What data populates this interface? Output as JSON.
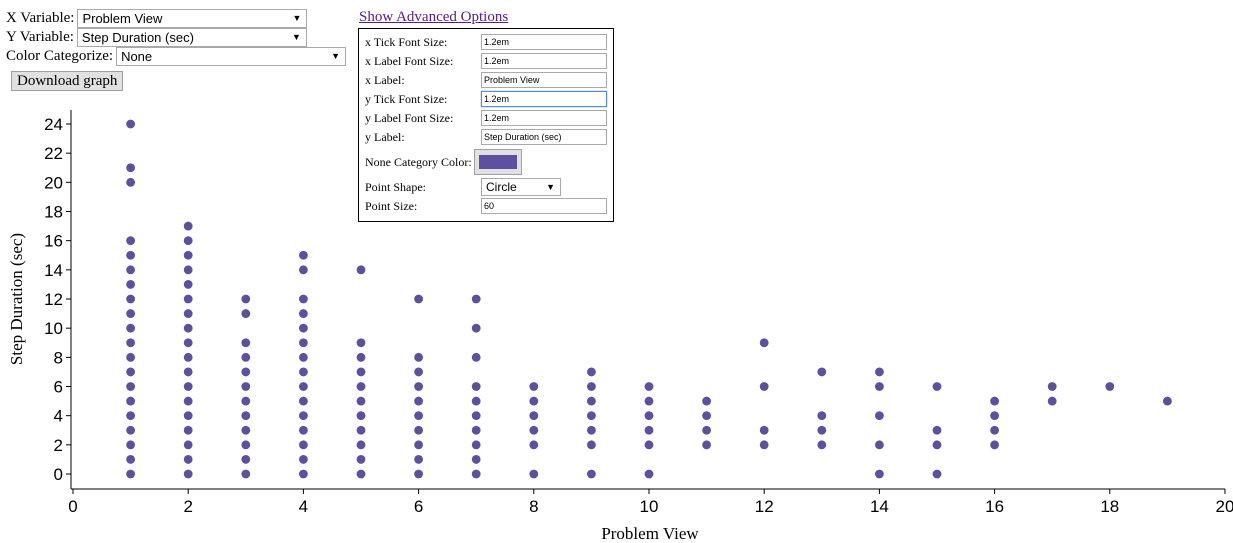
{
  "controls": {
    "x_variable": {
      "label": "X Variable:",
      "value": "Problem View"
    },
    "y_variable": {
      "label": "Y Variable:",
      "value": "Step Duration (sec)"
    },
    "color_categorize": {
      "label": "Color Categorize:",
      "value": "None"
    },
    "download_label": "Download graph"
  },
  "advanced": {
    "link_text": "Show Advanced Options",
    "x_tick_font_size": {
      "label": "x Tick Font Size:",
      "value": "1.2em"
    },
    "x_label_font_size": {
      "label": "x Label Font Size:",
      "value": "1.2em"
    },
    "x_label": {
      "label": "x Label:",
      "value": "Problem View"
    },
    "y_tick_font_size": {
      "label": "y Tick Font Size:",
      "value": "1.2em"
    },
    "y_label_font_size": {
      "label": "y Label Font Size:",
      "value": "1.2em"
    },
    "y_label": {
      "label": "y Label:",
      "value": "Step Duration (sec)"
    },
    "none_category_color": {
      "label": "None Category Color:",
      "value": "#5e4fa2"
    },
    "point_shape": {
      "label": "Point Shape:",
      "value": "Circle"
    },
    "point_size": {
      "label": "Point Size:",
      "value": "60"
    }
  },
  "chart_data": {
    "type": "scatter",
    "xlabel": "Problem View",
    "ylabel": "Step Duration (sec)",
    "xlim": [
      0,
      20
    ],
    "ylim": [
      0,
      24
    ],
    "xticks": [
      "0",
      "2",
      "4",
      "6",
      "8",
      "10",
      "12",
      "14",
      "16",
      "18",
      "20"
    ],
    "yticks": [
      "0",
      "2",
      "4",
      "6",
      "8",
      "10",
      "12",
      "14",
      "16",
      "18",
      "20",
      "22",
      "24"
    ],
    "color": "#5e4fa2",
    "points_by_x": [
      {
        "x": 1,
        "y": [
          0,
          1,
          2,
          3,
          4,
          5,
          6,
          7,
          8,
          9,
          10,
          11,
          12,
          13,
          14,
          15,
          16,
          20,
          21,
          24
        ]
      },
      {
        "x": 2,
        "y": [
          0,
          1,
          2,
          3,
          4,
          5,
          6,
          7,
          8,
          9,
          10,
          11,
          12,
          13,
          14,
          15,
          16,
          17
        ]
      },
      {
        "x": 3,
        "y": [
          0,
          1,
          2,
          3,
          4,
          5,
          6,
          7,
          8,
          9,
          11,
          12
        ]
      },
      {
        "x": 4,
        "y": [
          0,
          1,
          2,
          3,
          4,
          5,
          6,
          7,
          8,
          9,
          10,
          11,
          12,
          14,
          15
        ]
      },
      {
        "x": 5,
        "y": [
          0,
          1,
          2,
          3,
          4,
          5,
          6,
          7,
          8,
          9,
          14
        ]
      },
      {
        "x": 6,
        "y": [
          0,
          1,
          2,
          3,
          4,
          5,
          6,
          7,
          8,
          12
        ]
      },
      {
        "x": 7,
        "y": [
          0,
          1,
          2,
          3,
          4,
          5,
          6,
          8,
          10,
          12
        ]
      },
      {
        "x": 8,
        "y": [
          0,
          2,
          3,
          4,
          5,
          6
        ]
      },
      {
        "x": 9,
        "y": [
          0,
          2,
          3,
          4,
          5,
          6,
          7
        ]
      },
      {
        "x": 10,
        "y": [
          0,
          2,
          3,
          4,
          5,
          6
        ]
      },
      {
        "x": 11,
        "y": [
          2,
          3,
          4,
          5
        ]
      },
      {
        "x": 12,
        "y": [
          2,
          3,
          6,
          9
        ]
      },
      {
        "x": 13,
        "y": [
          2,
          3,
          4,
          7
        ]
      },
      {
        "x": 14,
        "y": [
          0,
          2,
          4,
          6,
          7
        ]
      },
      {
        "x": 15,
        "y": [
          0,
          2,
          3,
          6
        ]
      },
      {
        "x": 16,
        "y": [
          2,
          3,
          4,
          5
        ]
      },
      {
        "x": 17,
        "y": [
          5,
          6
        ]
      },
      {
        "x": 18,
        "y": [
          6
        ]
      },
      {
        "x": 19,
        "y": [
          5
        ]
      }
    ]
  }
}
